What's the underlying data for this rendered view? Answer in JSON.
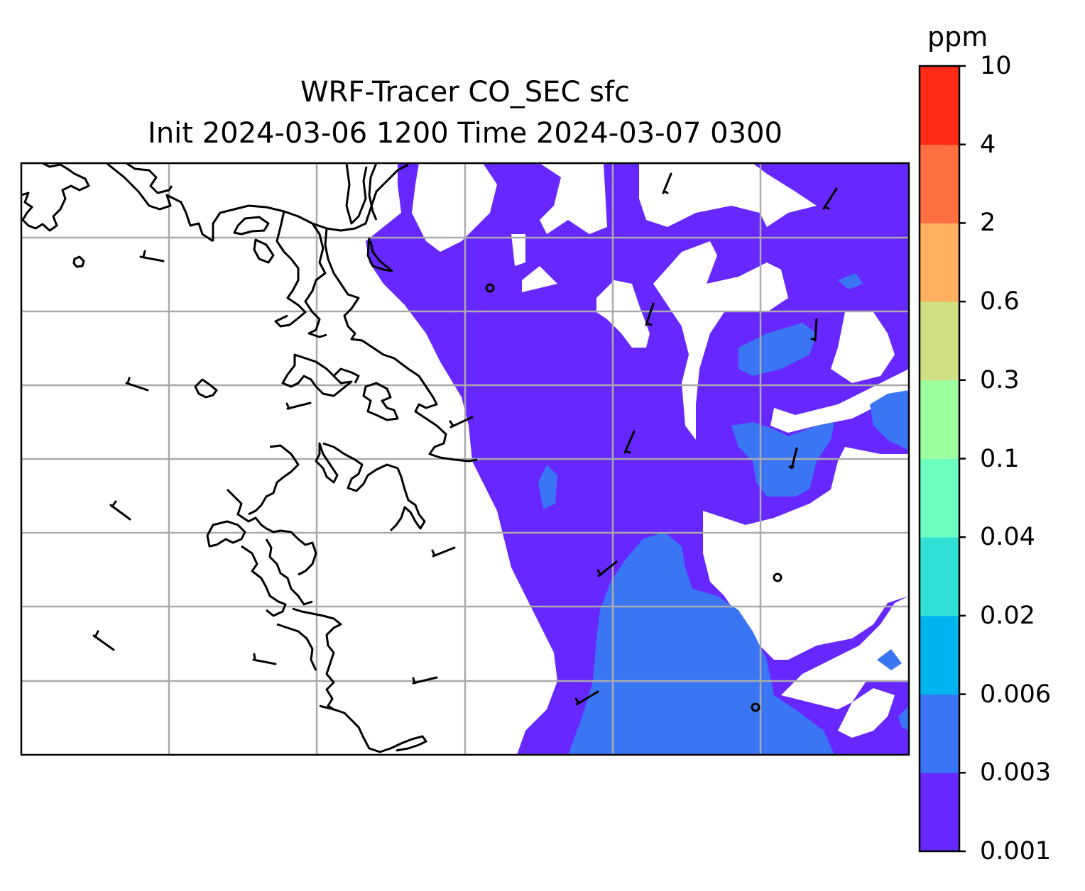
{
  "title": {
    "line1": "WRF-Tracer CO_SEC sfc",
    "line2": "Init 2024-03-06 1200 Time 2024-03-07 0300"
  },
  "colorbar": {
    "unit": "ppm",
    "levels": [
      "0.001",
      "0.003",
      "0.006",
      "0.02",
      "0.04",
      "0.1",
      "0.3",
      "0.6",
      "2",
      "4",
      "10"
    ],
    "colors": [
      "#6628ff",
      "#3a76f4",
      "#00b4ee",
      "#30e0d4",
      "#6cffc0",
      "#9cffa0",
      "#d0e084",
      "#ffb060",
      "#ff7040",
      "#ff2a18"
    ]
  },
  "map": {
    "fill_colors": {
      "level_0_001_to_0_003": "#6628ff",
      "level_0_003_to_0_006": "#3a76f4"
    },
    "gridline_color": "#aaaaaa",
    "coastline_color": "#000000",
    "wind_barb_color": "#000000",
    "icons": [
      "coastline",
      "wind-barb",
      "calm-circle"
    ]
  }
}
